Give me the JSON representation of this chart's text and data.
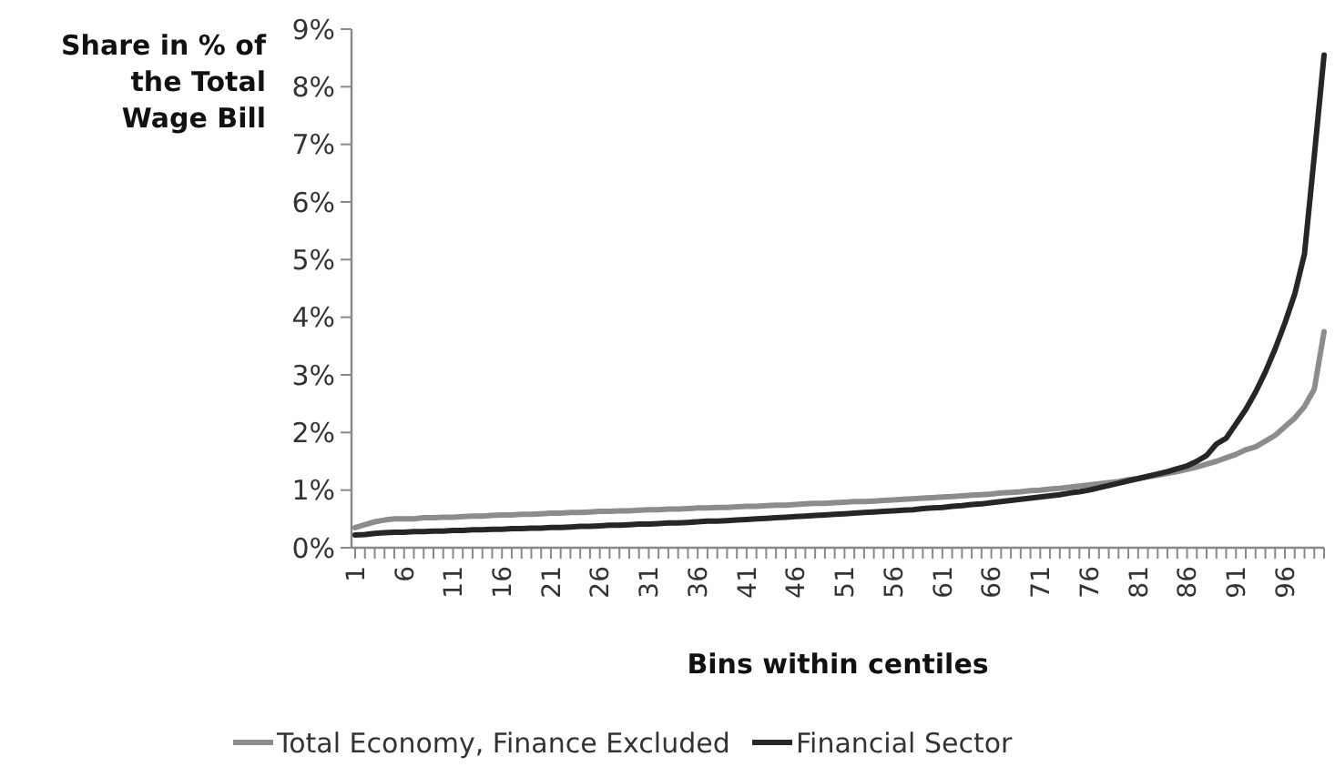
{
  "chart_data": {
    "type": "line",
    "ylabel": "Share in % of the Total Wage Bill",
    "xlabel": "Bins within centiles",
    "categories": [
      "1",
      null,
      null,
      null,
      null,
      "6",
      null,
      null,
      null,
      null,
      "11",
      null,
      null,
      null,
      null,
      "16",
      null,
      null,
      null,
      null,
      "21",
      null,
      null,
      null,
      null,
      "26",
      null,
      null,
      null,
      null,
      "31",
      null,
      null,
      null,
      null,
      "36",
      null,
      null,
      null,
      null,
      "41",
      null,
      null,
      null,
      null,
      "46",
      null,
      null,
      null,
      null,
      "51",
      null,
      null,
      null,
      null,
      "56",
      null,
      null,
      null,
      null,
      "61",
      null,
      null,
      null,
      null,
      "66",
      null,
      null,
      null,
      null,
      "71",
      null,
      null,
      null,
      null,
      "76",
      null,
      null,
      null,
      null,
      "81",
      null,
      null,
      null,
      null,
      "86",
      null,
      null,
      null,
      null,
      "91",
      null,
      null,
      null,
      null,
      "96",
      null,
      null,
      null,
      null
    ],
    "series": [
      {
        "name": "Total Economy, Finance Excluded",
        "color": "#8c8c8c",
        "values": [
          0.35,
          0.4,
          0.45,
          0.48,
          0.5,
          0.5,
          0.5,
          0.52,
          0.52,
          0.53,
          0.53,
          0.54,
          0.55,
          0.55,
          0.56,
          0.57,
          0.57,
          0.58,
          0.58,
          0.59,
          0.6,
          0.6,
          0.61,
          0.61,
          0.62,
          0.63,
          0.63,
          0.64,
          0.64,
          0.65,
          0.66,
          0.66,
          0.67,
          0.67,
          0.68,
          0.69,
          0.69,
          0.7,
          0.7,
          0.71,
          0.72,
          0.72,
          0.73,
          0.74,
          0.74,
          0.75,
          0.76,
          0.77,
          0.77,
          0.78,
          0.79,
          0.8,
          0.8,
          0.81,
          0.82,
          0.83,
          0.84,
          0.85,
          0.86,
          0.87,
          0.88,
          0.89,
          0.9,
          0.91,
          0.92,
          0.93,
          0.95,
          0.96,
          0.97,
          0.99,
          1.0,
          1.02,
          1.03,
          1.05,
          1.07,
          1.09,
          1.11,
          1.13,
          1.15,
          1.18,
          1.2,
          1.23,
          1.26,
          1.29,
          1.32,
          1.36,
          1.4,
          1.45,
          1.5,
          1.56,
          1.62,
          1.7,
          1.75,
          1.85,
          1.95,
          2.1,
          2.25,
          2.45,
          2.75,
          3.75
        ]
      },
      {
        "name": "Financial Sector",
        "color": "#262626",
        "values": [
          0.22,
          0.23,
          0.25,
          0.26,
          0.27,
          0.27,
          0.28,
          0.28,
          0.29,
          0.29,
          0.3,
          0.3,
          0.31,
          0.31,
          0.32,
          0.32,
          0.33,
          0.33,
          0.34,
          0.34,
          0.35,
          0.35,
          0.36,
          0.37,
          0.37,
          0.38,
          0.39,
          0.39,
          0.4,
          0.41,
          0.41,
          0.42,
          0.43,
          0.43,
          0.44,
          0.45,
          0.46,
          0.46,
          0.47,
          0.48,
          0.49,
          0.5,
          0.51,
          0.52,
          0.53,
          0.54,
          0.55,
          0.56,
          0.57,
          0.58,
          0.59,
          0.6,
          0.61,
          0.62,
          0.63,
          0.64,
          0.65,
          0.66,
          0.68,
          0.69,
          0.7,
          0.72,
          0.73,
          0.75,
          0.76,
          0.78,
          0.8,
          0.82,
          0.84,
          0.86,
          0.88,
          0.9,
          0.92,
          0.95,
          0.97,
          1.0,
          1.04,
          1.08,
          1.12,
          1.16,
          1.2,
          1.24,
          1.28,
          1.32,
          1.37,
          1.42,
          1.5,
          1.6,
          1.8,
          1.9,
          2.15,
          2.4,
          2.7,
          3.05,
          3.45,
          3.9,
          4.4,
          5.1,
          6.8,
          8.55
        ]
      }
    ],
    "ylim": [
      0,
      9
    ],
    "yticks": [
      {
        "value": 0,
        "label": "0%"
      },
      {
        "value": 1,
        "label": "1%"
      },
      {
        "value": 2,
        "label": "2%"
      },
      {
        "value": 3,
        "label": "3%"
      },
      {
        "value": 4,
        "label": "4%"
      },
      {
        "value": 5,
        "label": "5%"
      },
      {
        "value": 6,
        "label": "6%"
      },
      {
        "value": 7,
        "label": "7%"
      },
      {
        "value": 8,
        "label": "8%"
      },
      {
        "value": 9,
        "label": "9%"
      }
    ],
    "legend": "bottom",
    "marker": "none",
    "line_style": "solid"
  }
}
